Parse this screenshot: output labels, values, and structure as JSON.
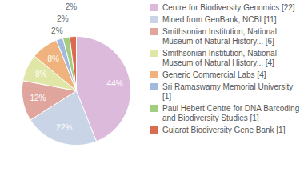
{
  "chart_data": {
    "type": "pie",
    "categories": [
      "Centre for Biodiversity Genomics [22]",
      "Mined from GenBank, NCBI [11]",
      "Smithsonian Institution, National Museum of Natural History... [6]",
      "Smithsonian Institution, National Museum of Natural History... [4]",
      "Generic Commercial Labs [4]",
      "Sri Ramaswamy Memorial University [1]",
      "Paul Hebert Centre for DNA Barcoding and Biodiversity Studies [1]",
      "Gujarat Biodiversity Gene Bank [1]"
    ],
    "values": [
      44,
      22,
      12,
      8,
      8,
      2,
      2,
      2
    ],
    "value_labels": [
      "44%",
      "22%",
      "12%",
      "8%",
      "8%",
      "2%",
      "2%",
      "2%"
    ],
    "data_labels": true,
    "colors": [
      "#dcbadc",
      "#c9d5e6",
      "#e0a59c",
      "#dfe6a6",
      "#f0b37e",
      "#a1badd",
      "#a3cd7f",
      "#da6a50"
    ],
    "legend": "right"
  }
}
